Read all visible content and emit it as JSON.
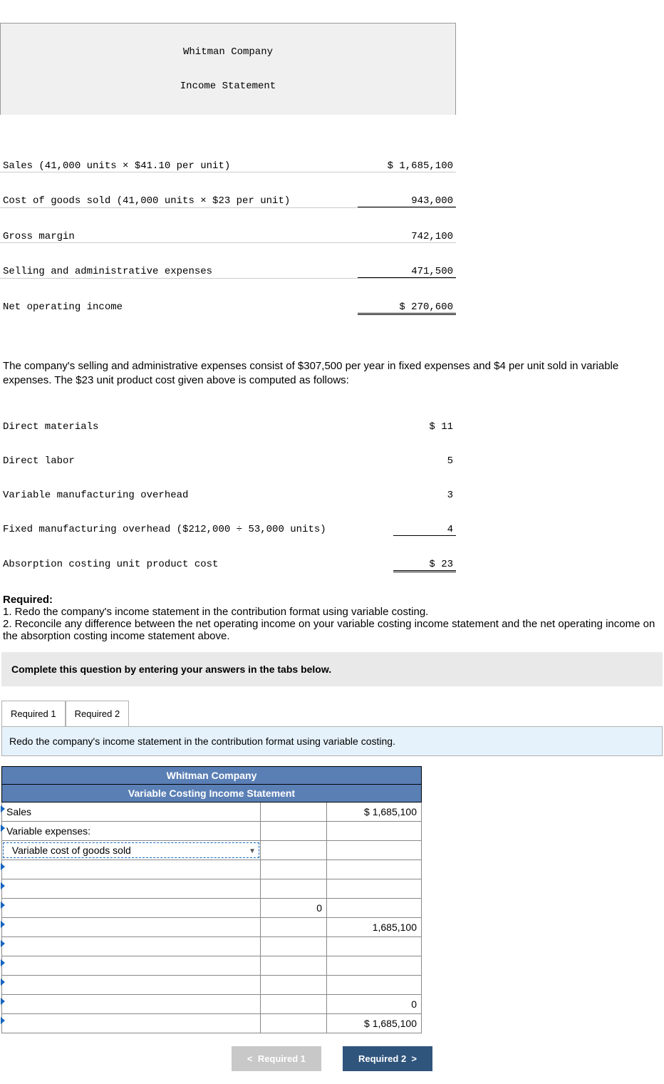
{
  "income": {
    "company": "Whitman Company",
    "title": "Income Statement",
    "rows": [
      {
        "label": "Sales (41,000 units × $41.10 per unit)",
        "value": "$ 1,685,100"
      },
      {
        "label": "Cost of goods sold (41,000 units × $23 per unit)",
        "value": "943,000"
      },
      {
        "label": "Gross margin",
        "value": "742,100"
      },
      {
        "label": "Selling and administrative expenses",
        "value": "471,500"
      },
      {
        "label": "Net operating income",
        "value": "$ 270,600"
      }
    ]
  },
  "para1": "The company's selling and administrative expenses consist of $307,500 per year in fixed expenses and $4 per unit sold in variable expenses. The $23 unit product cost given above is computed as follows:",
  "cost": {
    "rows": [
      {
        "label": "Direct materials",
        "value": "$ 11"
      },
      {
        "label": "Direct labor",
        "value": "5"
      },
      {
        "label": "Variable manufacturing overhead",
        "value": "3"
      },
      {
        "label": "Fixed manufacturing overhead ($212,000 ÷ 53,000 units)",
        "value": "4"
      },
      {
        "label": "Absorption costing unit product cost",
        "value": "$ 23"
      }
    ]
  },
  "required": {
    "heading": "Required:",
    "items": [
      "1. Redo the company's income statement in the contribution format using variable costing.",
      "2. Reconcile any difference between the net operating income on your variable costing income statement and the net operating income on the absorption costing income statement above."
    ]
  },
  "instruction": "Complete this question by entering your answers in the tabs below.",
  "tabs": {
    "t1": "Required 1",
    "t2": "Required 2"
  },
  "tabHeader": "Redo the company's income statement in the contribution format using variable costing.",
  "answer": {
    "header1": "Whitman Company",
    "header2": "Variable Costing Income Statement",
    "rows": [
      {
        "label": "Sales",
        "mid": "",
        "val": "$ 1,685,100",
        "marker": true
      },
      {
        "label": "Variable expenses:",
        "mid": "",
        "val": "",
        "marker": true
      },
      {
        "label": "Variable cost of goods sold",
        "mid": "",
        "val": "",
        "marker": false,
        "dropdown": true,
        "indent": true
      },
      {
        "label": "",
        "mid": "",
        "val": "",
        "marker": true
      },
      {
        "label": "",
        "mid": "",
        "val": "",
        "marker": true
      },
      {
        "label": "",
        "mid": "0",
        "val": "",
        "marker": true
      },
      {
        "label": "",
        "mid": "",
        "val": "1,685,100",
        "marker": true
      },
      {
        "label": "",
        "mid": "",
        "val": "",
        "marker": true
      },
      {
        "label": "",
        "mid": "",
        "val": "",
        "marker": true
      },
      {
        "label": "",
        "mid": "",
        "val": "",
        "marker": true
      },
      {
        "label": "",
        "mid": "",
        "val": "0",
        "marker": true
      },
      {
        "label": "",
        "mid": "",
        "val": "$ 1,685,100",
        "marker": true
      }
    ]
  },
  "nav": {
    "prev": "Required 1",
    "next": "Required 2"
  }
}
